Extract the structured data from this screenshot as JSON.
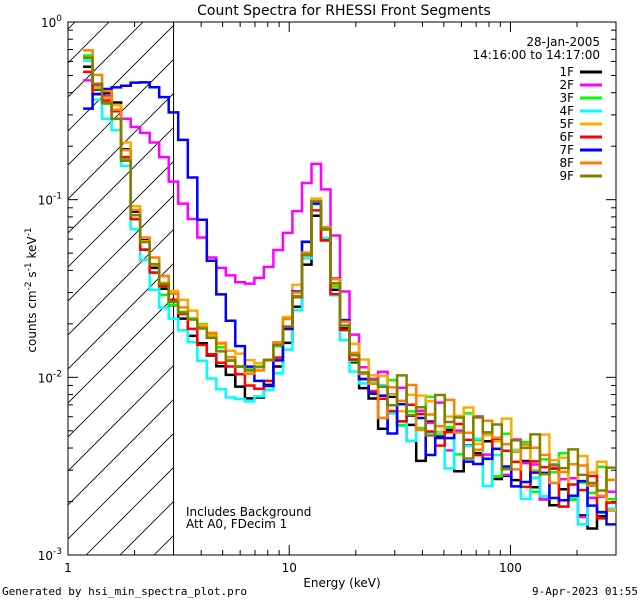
{
  "chart_data": {
    "type": "line",
    "title": "Count Spectra for RHESSI Front Segments",
    "xlabel": "Energy (keV)",
    "ylabel_parts": {
      "base": "counts cm",
      "exp1": "-2",
      "s": " s",
      "exp2": "-1",
      "kev": " keV",
      "exp3": "-1"
    },
    "xscale": "log",
    "yscale": "log",
    "xlim": [
      1,
      300
    ],
    "ylim": [
      0.001,
      1.0
    ],
    "x_ticks": [
      {
        "value": 1,
        "label": "1"
      },
      {
        "value": 10,
        "label": "10"
      },
      {
        "value": 100,
        "label": "100"
      }
    ],
    "y_ticks": [
      {
        "value": 0.001,
        "base": "10",
        "exp": "-3"
      },
      {
        "value": 0.01,
        "base": "10",
        "exp": "-2"
      },
      {
        "value": 0.1,
        "base": "10",
        "exp": "-1"
      },
      {
        "value": 1,
        "base": "10",
        "exp": "0"
      }
    ],
    "date": "28-Jan-2005",
    "time_range": "14:16:00 to 14:17:00",
    "annotation_lines": [
      "Includes Background",
      "Att A0, FDecim 1"
    ],
    "hatched_region_keV": [
      1,
      3
    ],
    "legend_position": "top-right",
    "series": [
      {
        "name": "1F",
        "color": "#000000",
        "values": [
          0.56,
          0.4,
          0.38,
          0.35,
          0.2,
          0.09,
          0.06,
          0.04,
          0.03,
          0.025,
          0.022,
          0.018,
          0.016,
          0.013,
          0.011,
          0.01,
          0.009,
          0.008,
          0.008,
          0.009,
          0.011,
          0.015,
          0.025,
          0.045,
          0.085,
          0.06,
          0.03,
          0.018,
          0.012,
          0.009,
          0.008,
          0.007,
          0.006,
          0.0055,
          0.005,
          0.005,
          0.0048,
          0.0045,
          0.0043,
          0.0042,
          0.004,
          0.0037,
          0.0035,
          0.0033,
          0.003,
          0.0028,
          0.0027,
          0.0025,
          0.0023,
          0.0022,
          0.002,
          0.0019,
          0.0018,
          0.0017,
          0.0016,
          0.0015
        ]
      },
      {
        "name": "2F",
        "color": "#ff00ff",
        "values": [
          0.45,
          0.42,
          0.38,
          0.33,
          0.3,
          0.26,
          0.23,
          0.2,
          0.17,
          0.13,
          0.1,
          0.08,
          0.06,
          0.045,
          0.04,
          0.038,
          0.036,
          0.035,
          0.036,
          0.04,
          0.05,
          0.065,
          0.09,
          0.13,
          0.16,
          0.11,
          0.06,
          0.03,
          0.018,
          0.012,
          0.01,
          0.009,
          0.008,
          0.0072,
          0.0066,
          0.006,
          0.0058,
          0.0055,
          0.0052,
          0.005,
          0.0048,
          0.0045,
          0.0042,
          0.004,
          0.0037,
          0.0035,
          0.0033,
          0.0031,
          0.0029,
          0.0027,
          0.0025,
          0.0024,
          0.0022,
          0.0021,
          0.002,
          0.0019
        ]
      },
      {
        "name": "3F",
        "color": "#00ff00",
        "values": [
          0.62,
          0.42,
          0.36,
          0.3,
          0.17,
          0.075,
          0.05,
          0.038,
          0.03,
          0.027,
          0.024,
          0.021,
          0.019,
          0.017,
          0.015,
          0.013,
          0.012,
          0.011,
          0.011,
          0.012,
          0.015,
          0.02,
          0.03,
          0.05,
          0.095,
          0.065,
          0.032,
          0.019,
          0.013,
          0.01,
          0.009,
          0.008,
          0.0075,
          0.007,
          0.0065,
          0.006,
          0.0058,
          0.0055,
          0.0052,
          0.005,
          0.0048,
          0.0046,
          0.0044,
          0.0042,
          0.004,
          0.0038,
          0.0036,
          0.0034,
          0.0032,
          0.003,
          0.0029,
          0.0027,
          0.0026,
          0.0025,
          0.0024,
          0.0023
        ]
      },
      {
        "name": "4F",
        "color": "#00ffff",
        "values": [
          0.6,
          0.38,
          0.3,
          0.25,
          0.15,
          0.065,
          0.045,
          0.032,
          0.026,
          0.022,
          0.018,
          0.015,
          0.012,
          0.01,
          0.009,
          0.008,
          0.0075,
          0.007,
          0.0075,
          0.0085,
          0.011,
          0.015,
          0.024,
          0.045,
          0.09,
          0.06,
          0.03,
          0.017,
          0.011,
          0.009,
          0.008,
          0.0072,
          0.0066,
          0.006,
          0.0055,
          0.005,
          0.0048,
          0.0046,
          0.0044,
          0.0042,
          0.004,
          0.0038,
          0.0036,
          0.0034,
          0.0032,
          0.003,
          0.0028,
          0.0027,
          0.0025,
          0.0024,
          0.0022,
          0.0021,
          0.002,
          0.0019,
          0.0018,
          0.0017
        ]
      },
      {
        "name": "5F",
        "color": "#ffaa00",
        "values": [
          0.65,
          0.45,
          0.38,
          0.33,
          0.2,
          0.09,
          0.06,
          0.045,
          0.035,
          0.03,
          0.026,
          0.023,
          0.02,
          0.018,
          0.016,
          0.014,
          0.013,
          0.012,
          0.012,
          0.013,
          0.016,
          0.022,
          0.032,
          0.055,
          0.1,
          0.07,
          0.035,
          0.021,
          0.015,
          0.012,
          0.01,
          0.009,
          0.0085,
          0.008,
          0.0075,
          0.007,
          0.0067,
          0.0064,
          0.0061,
          0.0058,
          0.0055,
          0.0052,
          0.005,
          0.0048,
          0.0045,
          0.0043,
          0.0041,
          0.0039,
          0.0037,
          0.0035,
          0.0033,
          0.0032,
          0.003,
          0.0029,
          0.0028,
          0.0027
        ]
      },
      {
        "name": "6F",
        "color": "#ff0000",
        "values": [
          0.55,
          0.4,
          0.35,
          0.3,
          0.17,
          0.08,
          0.055,
          0.04,
          0.032,
          0.026,
          0.022,
          0.019,
          0.016,
          0.014,
          0.012,
          0.011,
          0.01,
          0.009,
          0.009,
          0.01,
          0.013,
          0.018,
          0.027,
          0.048,
          0.09,
          0.062,
          0.03,
          0.018,
          0.012,
          0.0095,
          0.0085,
          0.0078,
          0.0072,
          0.0066,
          0.006,
          0.0056,
          0.0053,
          0.005,
          0.0048,
          0.0046,
          0.0044,
          0.0042,
          0.004,
          0.0038,
          0.0036,
          0.0034,
          0.0032,
          0.003,
          0.0029,
          0.0027,
          0.0026,
          0.0024,
          0.0023,
          0.0022,
          0.0021,
          0.002
        ]
      },
      {
        "name": "7F",
        "color": "#0000ff",
        "values": [
          0.33,
          0.38,
          0.4,
          0.42,
          0.45,
          0.48,
          0.47,
          0.42,
          0.36,
          0.3,
          0.22,
          0.14,
          0.08,
          0.045,
          0.028,
          0.02,
          0.015,
          0.012,
          0.01,
          0.009,
          0.012,
          0.018,
          0.03,
          0.06,
          0.1,
          0.07,
          0.035,
          0.02,
          0.013,
          0.01,
          0.0085,
          0.0075,
          0.0068,
          0.0062,
          0.0057,
          0.0052,
          0.0049,
          0.0046,
          0.0043,
          0.0041,
          0.0039,
          0.0037,
          0.0035,
          0.0033,
          0.0031,
          0.0029,
          0.0028,
          0.0026,
          0.0025,
          0.0024,
          0.0023,
          0.0022,
          0.0021,
          0.002,
          0.0019,
          0.0018
        ]
      },
      {
        "name": "8F",
        "color": "#ff7f00",
        "values": [
          0.67,
          0.48,
          0.4,
          0.33,
          0.2,
          0.09,
          0.06,
          0.045,
          0.036,
          0.03,
          0.026,
          0.022,
          0.019,
          0.017,
          0.015,
          0.013,
          0.012,
          0.011,
          0.011,
          0.012,
          0.015,
          0.021,
          0.031,
          0.053,
          0.1,
          0.068,
          0.034,
          0.02,
          0.014,
          0.011,
          0.0095,
          0.0088,
          0.0082,
          0.0076,
          0.007,
          0.0066,
          0.0063,
          0.006,
          0.0057,
          0.0054,
          0.0051,
          0.0049,
          0.0046,
          0.0044,
          0.0042,
          0.004,
          0.0038,
          0.0036,
          0.0034,
          0.0032,
          0.0031,
          0.0029,
          0.0028,
          0.0027,
          0.0026,
          0.0025
        ]
      },
      {
        "name": "9F",
        "color": "#808000",
        "values": [
          0.6,
          0.44,
          0.36,
          0.3,
          0.17,
          0.08,
          0.055,
          0.042,
          0.034,
          0.028,
          0.024,
          0.021,
          0.018,
          0.016,
          0.014,
          0.013,
          0.012,
          0.011,
          0.011,
          0.012,
          0.015,
          0.02,
          0.03,
          0.05,
          0.095,
          0.065,
          0.033,
          0.02,
          0.014,
          0.011,
          0.0095,
          0.0088,
          0.0082,
          0.0076,
          0.0071,
          0.0067,
          0.0064,
          0.0061,
          0.0058,
          0.0055,
          0.0052,
          0.005,
          0.0048,
          0.0046,
          0.0044,
          0.0042,
          0.004,
          0.0038,
          0.0036,
          0.0034,
          0.0033,
          0.0031,
          0.003,
          0.0028,
          0.0027,
          0.0026
        ]
      }
    ]
  },
  "footer": {
    "generated_by": "Generated by hsi_min_spectra_plot.pro",
    "timestamp": "9-Apr-2023 01:55"
  }
}
